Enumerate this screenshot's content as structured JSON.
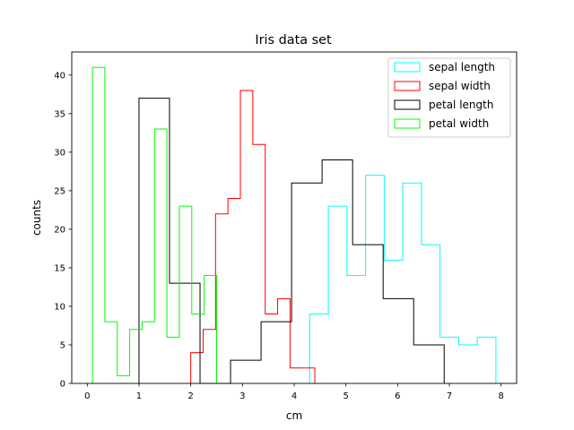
{
  "chart_data": {
    "type": "histogram-step",
    "title": "Iris data set",
    "xlabel": "cm",
    "ylabel": "counts",
    "xlim": [
      -0.3,
      8.3
    ],
    "ylim": [
      0,
      43
    ],
    "xticks": [
      0,
      1,
      2,
      3,
      4,
      5,
      6,
      7,
      8
    ],
    "yticks": [
      0,
      5,
      10,
      15,
      20,
      25,
      30,
      35,
      40
    ],
    "legend_position": "top-right",
    "series": [
      {
        "name": "sepal length",
        "color": "#00ffff",
        "bin_edges": [
          4.3,
          4.66,
          5.02,
          5.38,
          5.74,
          6.1,
          6.46,
          6.82,
          7.18,
          7.54,
          7.9
        ],
        "counts": [
          9,
          23,
          14,
          27,
          16,
          26,
          18,
          6,
          5,
          6
        ]
      },
      {
        "name": "sepal width",
        "color": "#ff0000",
        "bin_edges": [
          2.0,
          2.24,
          2.48,
          2.72,
          2.96,
          3.2,
          3.44,
          3.68,
          3.92,
          4.16,
          4.4
        ],
        "counts": [
          4,
          7,
          22,
          24,
          38,
          31,
          9,
          11,
          2,
          2
        ]
      },
      {
        "name": "petal length",
        "color": "#000000",
        "bin_edges": [
          1.0,
          1.59,
          2.18,
          2.77,
          3.36,
          3.95,
          4.54,
          5.13,
          5.72,
          6.31,
          6.9
        ],
        "counts": [
          37,
          13,
          0,
          3,
          8,
          26,
          29,
          18,
          11,
          5
        ]
      },
      {
        "name": "petal width",
        "color": "#00ff00",
        "bin_edges": [
          0.1,
          0.34,
          0.58,
          0.82,
          1.06,
          1.3,
          1.54,
          1.78,
          2.02,
          2.26,
          2.5
        ],
        "counts": [
          41,
          8,
          1,
          7,
          8,
          33,
          6,
          23,
          9,
          14
        ]
      }
    ]
  }
}
